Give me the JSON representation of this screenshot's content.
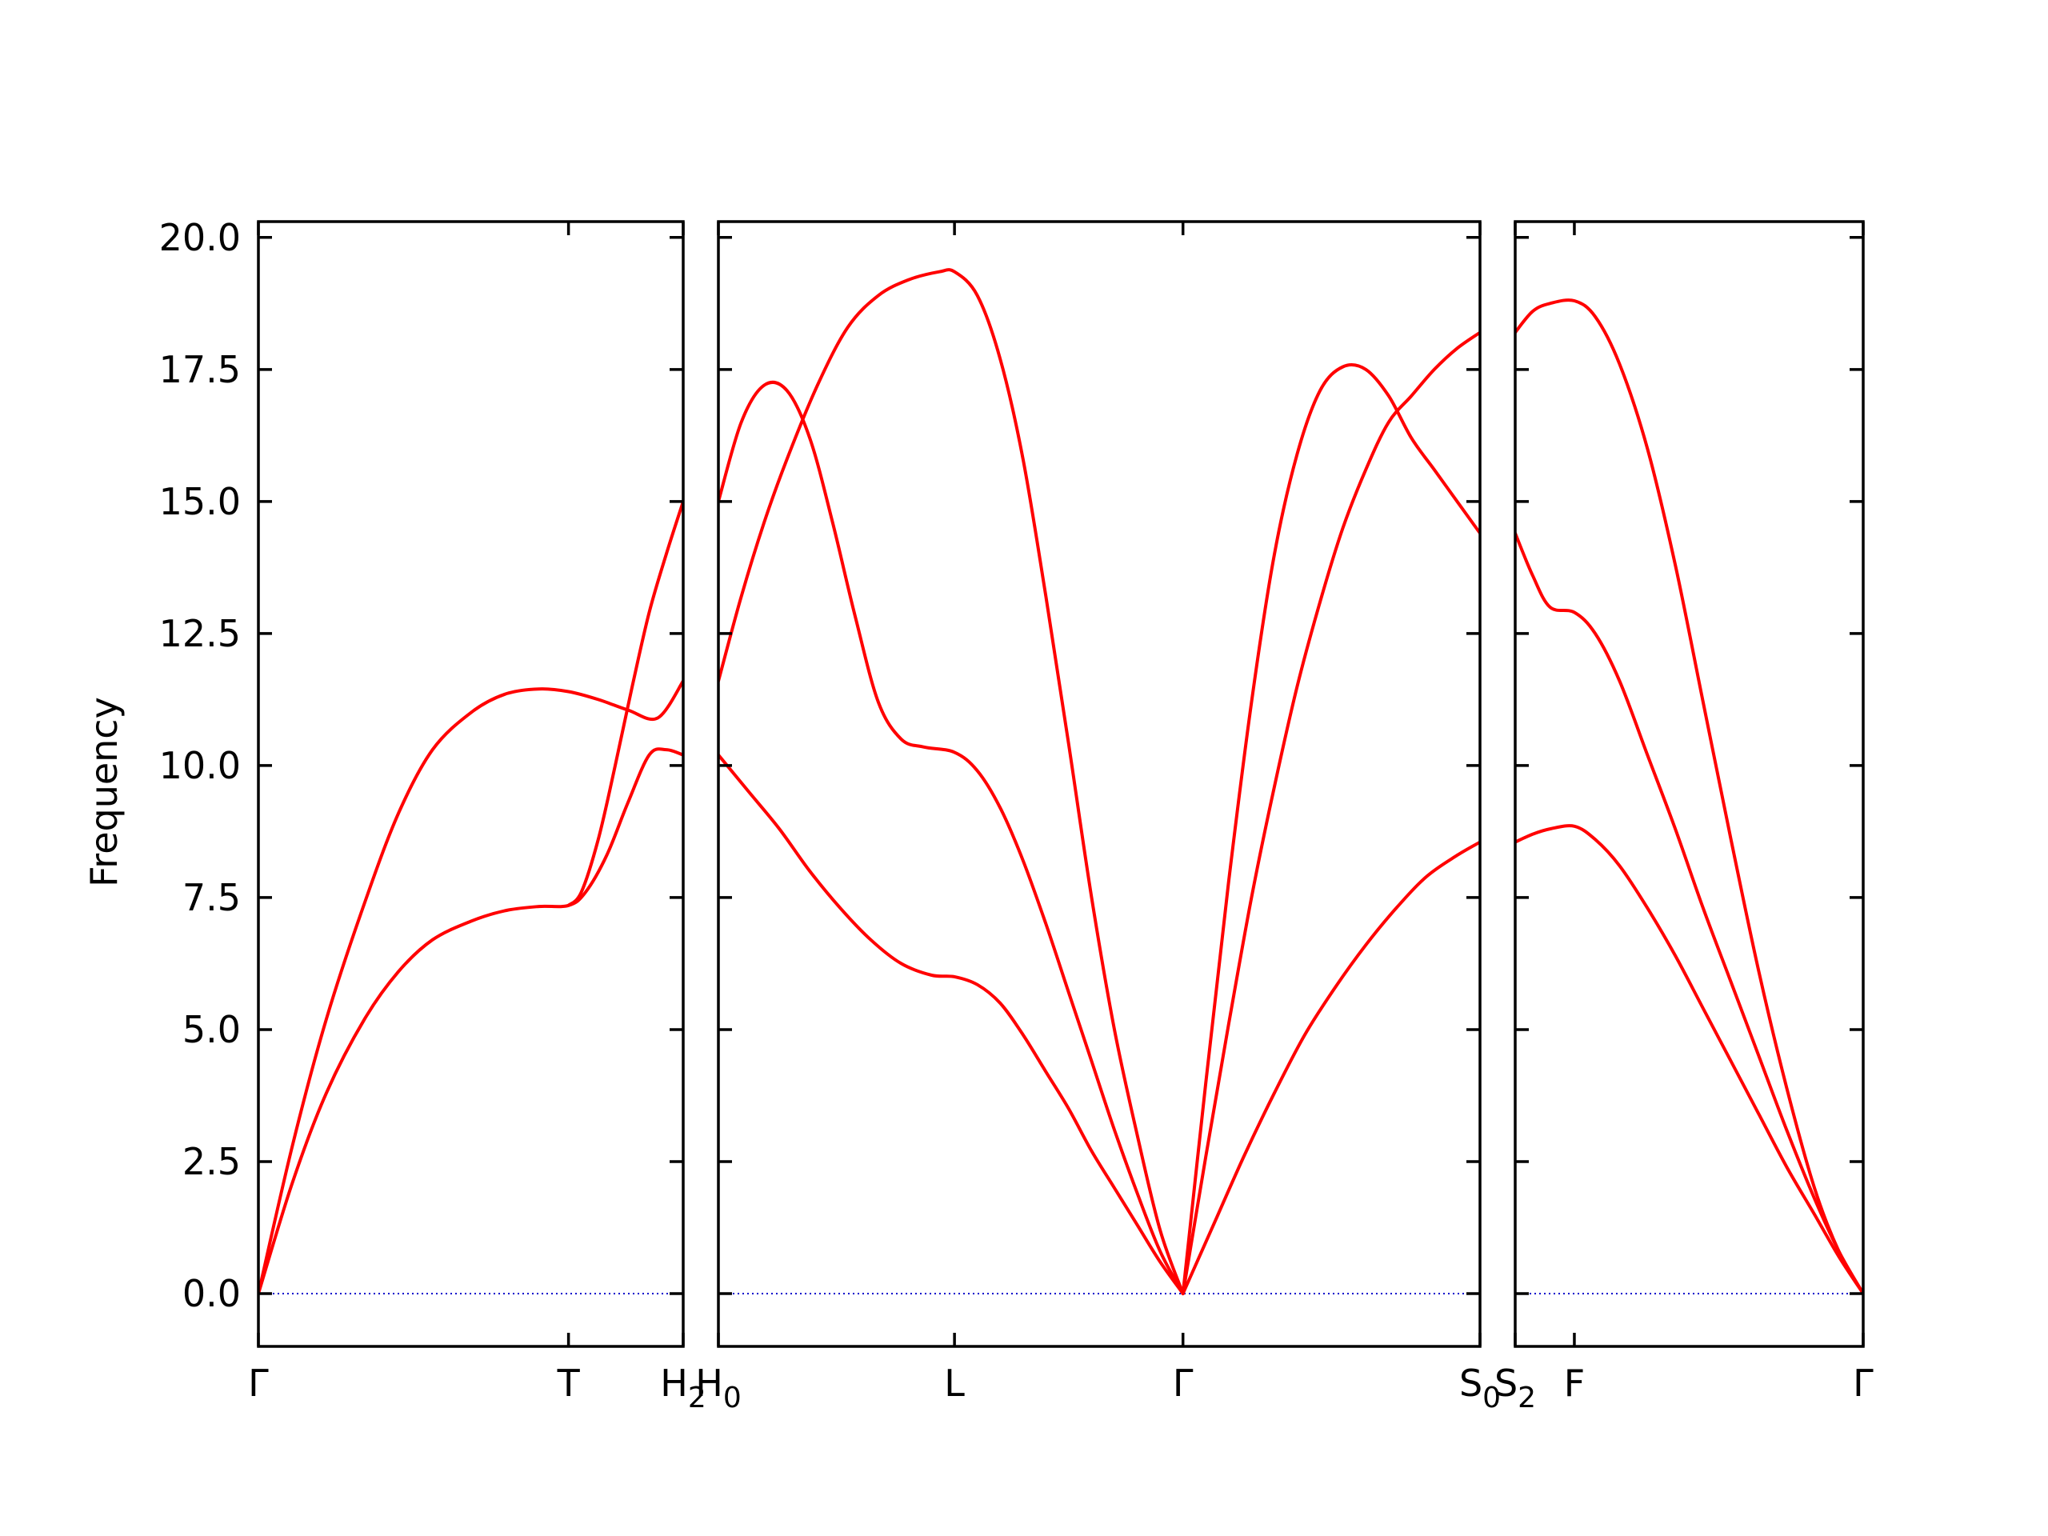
{
  "chart_data": {
    "type": "line",
    "ylabel": "Frequency",
    "ylim": [
      -1.0,
      20.3
    ],
    "yticks": [
      "0.0",
      "2.5",
      "5.0",
      "7.5",
      "10.0",
      "12.5",
      "15.0",
      "17.5",
      "20.0"
    ],
    "ytick_values": [
      0,
      2.5,
      5,
      7.5,
      10,
      12.5,
      15,
      17.5,
      20
    ],
    "band_color": "#ff0000",
    "zero_line_color": "#0000cc",
    "panels": [
      {
        "xlim": [
          0,
          1.0
        ],
        "ticks": [
          {
            "x": 0.0,
            "label": "Γ",
            "sub": ""
          },
          {
            "x": 0.73,
            "label": "T",
            "sub": ""
          },
          {
            "x": 1.0,
            "label": "H",
            "sub": "2"
          }
        ],
        "series": [
          {
            "x": [
              0,
              0.08,
              0.16,
              0.25,
              0.33,
              0.41,
              0.5,
              0.58,
              0.66,
              0.73,
              0.8,
              0.87,
              0.94,
              1.0
            ],
            "y": [
              0,
              2.8,
              5.2,
              7.4,
              9.1,
              10.3,
              11.0,
              11.35,
              11.45,
              11.4,
              11.25,
              11.05,
              10.9,
              11.6
            ]
          },
          {
            "x": [
              0,
              0.08,
              0.16,
              0.25,
              0.33,
              0.41,
              0.5,
              0.58,
              0.66,
              0.73,
              0.77,
              0.82,
              0.87,
              0.92,
              0.96,
              1.0
            ],
            "y": [
              0,
              2.1,
              3.8,
              5.2,
              6.1,
              6.7,
              7.05,
              7.25,
              7.33,
              7.35,
              7.6,
              8.3,
              9.3,
              10.2,
              10.3,
              10.2
            ]
          },
          {
            "x": [
              0.73,
              0.76,
              0.8,
              0.84,
              0.88,
              0.92,
              0.96,
              1.0
            ],
            "y": [
              7.35,
              7.6,
              8.6,
              10.0,
              11.5,
              12.9,
              14.0,
              15.0
            ]
          }
        ]
      },
      {
        "xlim": [
          0,
          1.0
        ],
        "ticks": [
          {
            "x": 0.0,
            "label": "H",
            "sub": "0"
          },
          {
            "x": 0.31,
            "label": "L",
            "sub": ""
          },
          {
            "x": 0.61,
            "label": "Γ",
            "sub": ""
          },
          {
            "x": 1.0,
            "label": "S",
            "sub": "0"
          }
        ],
        "series": [
          {
            "x": [
              0,
              0.03,
              0.06,
              0.09,
              0.13,
              0.17,
              0.21,
              0.25,
              0.29,
              0.31,
              0.34,
              0.37,
              0.4,
              0.43,
              0.46,
              0.49,
              0.52,
              0.55,
              0.58,
              0.61
            ],
            "y": [
              11.6,
              13.2,
              14.6,
              15.8,
              17.2,
              18.3,
              18.9,
              19.2,
              19.35,
              19.35,
              18.9,
              17.7,
              15.8,
              13.2,
              10.4,
              7.5,
              5.0,
              3.0,
              1.2,
              0
            ]
          },
          {
            "x": [
              0,
              0.03,
              0.06,
              0.09,
              0.12,
              0.15,
              0.18,
              0.21,
              0.24,
              0.27,
              0.31,
              0.34,
              0.37,
              0.4,
              0.43,
              0.46,
              0.49,
              0.52,
              0.55,
              0.58,
              0.61
            ],
            "y": [
              15.0,
              16.5,
              17.2,
              17.1,
              16.2,
              14.6,
              12.8,
              11.2,
              10.5,
              10.35,
              10.25,
              9.9,
              9.2,
              8.2,
              7.0,
              5.7,
              4.4,
              3.1,
              1.9,
              0.8,
              0
            ]
          },
          {
            "x": [
              0,
              0.04,
              0.08,
              0.12,
              0.16,
              0.2,
              0.24,
              0.28,
              0.31,
              0.34,
              0.37,
              0.4,
              0.43,
              0.46,
              0.49,
              0.52,
              0.55,
              0.58,
              0.61
            ],
            "y": [
              10.2,
              9.5,
              8.8,
              8.0,
              7.3,
              6.7,
              6.25,
              6.03,
              6.0,
              5.85,
              5.5,
              4.9,
              4.2,
              3.5,
              2.7,
              2.0,
              1.3,
              0.6,
              0
            ]
          },
          {
            "x": [
              0.61,
              0.64,
              0.67,
              0.7,
              0.73,
              0.76,
              0.79,
              0.82,
              0.85,
              0.88,
              0.91,
              0.94,
              0.97,
              1.0
            ],
            "y": [
              0,
              4.0,
              7.8,
              11.2,
              14.0,
              15.9,
              17.1,
              17.55,
              17.5,
              17.0,
              16.2,
              15.6,
              15.0,
              14.4
            ]
          },
          {
            "x": [
              0.61,
              0.64,
              0.67,
              0.7,
              0.73,
              0.76,
              0.79,
              0.82,
              0.85,
              0.88,
              0.91,
              0.94,
              0.97,
              1.0
            ],
            "y": [
              0,
              2.6,
              5.1,
              7.5,
              9.6,
              11.5,
              13.1,
              14.5,
              15.6,
              16.5,
              17.0,
              17.5,
              17.9,
              18.2
            ]
          },
          {
            "x": [
              0.61,
              0.65,
              0.69,
              0.73,
              0.77,
              0.81,
              0.85,
              0.89,
              0.93,
              0.97,
              1.0
            ],
            "y": [
              0,
              1.3,
              2.6,
              3.8,
              4.9,
              5.8,
              6.6,
              7.3,
              7.9,
              8.3,
              8.55
            ]
          }
        ]
      },
      {
        "xlim": [
          0,
          1.0
        ],
        "ticks": [
          {
            "x": 0.0,
            "label": "S",
            "sub": "2"
          },
          {
            "x": 0.17,
            "label": "F",
            "sub": ""
          },
          {
            "x": 1.0,
            "label": "Γ",
            "sub": ""
          }
        ],
        "series": [
          {
            "x": [
              0,
              0.05,
              0.1,
              0.17,
              0.23,
              0.3,
              0.38,
              0.46,
              0.54,
              0.62,
              0.7,
              0.78,
              0.86,
              0.93,
              1.0
            ],
            "y": [
              18.2,
              18.6,
              18.75,
              18.8,
              18.5,
              17.6,
              16.0,
              13.8,
              11.2,
              8.6,
              6.1,
              3.9,
              2.0,
              0.8,
              0
            ]
          },
          {
            "x": [
              0,
              0.05,
              0.1,
              0.17,
              0.23,
              0.3,
              0.38,
              0.46,
              0.54,
              0.62,
              0.7,
              0.78,
              0.86,
              0.93,
              1.0
            ],
            "y": [
              14.4,
              13.6,
              13.0,
              12.9,
              12.5,
              11.6,
              10.2,
              8.8,
              7.3,
              5.9,
              4.5,
              3.1,
              1.8,
              0.8,
              0
            ]
          },
          {
            "x": [
              0,
              0.05,
              0.1,
              0.17,
              0.23,
              0.3,
              0.38,
              0.46,
              0.54,
              0.62,
              0.7,
              0.78,
              0.86,
              0.93,
              1.0
            ],
            "y": [
              8.55,
              8.7,
              8.8,
              8.85,
              8.6,
              8.1,
              7.3,
              6.4,
              5.4,
              4.4,
              3.4,
              2.4,
              1.5,
              0.7,
              0
            ]
          }
        ]
      }
    ]
  }
}
